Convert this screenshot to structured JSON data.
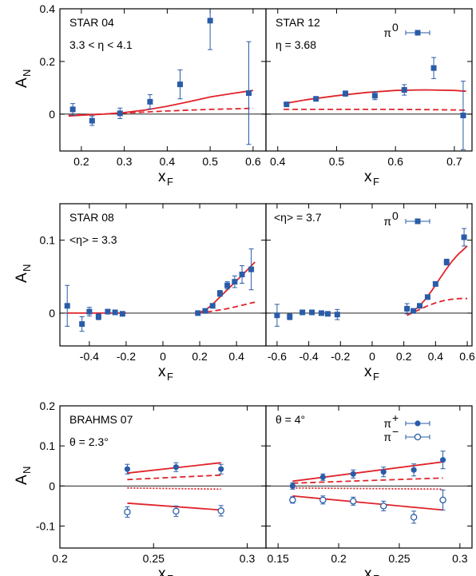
{
  "chart_data": [
    {
      "id": "star04",
      "type": "scatter",
      "title": "STAR 04",
      "annotation": "3.3 < η < 4.1",
      "legend": null,
      "xlim": [
        0.15,
        0.63
      ],
      "ylim": [
        -0.14,
        0.4
      ],
      "xticks": [
        0.2,
        0.3,
        0.4,
        0.5,
        0.6
      ],
      "xtick_labels": [
        "0.2",
        "0.3",
        "0.4",
        "0.5",
        "0.6"
      ],
      "yticks": [
        0,
        0.2,
        0.4
      ],
      "ytick_labels": [
        "0",
        "0.2",
        "0.4"
      ],
      "xlabel": "x",
      "xlabel_sub": "F",
      "ylabel": "A",
      "ylabel_sub": "N",
      "series": [
        {
          "marker": "square-filled",
          "color": "#2a5ca8",
          "x": [
            0.18,
            0.225,
            0.29,
            0.36,
            0.43,
            0.5,
            0.59
          ],
          "y": [
            0.018,
            -0.025,
            0.003,
            0.047,
            0.113,
            0.355,
            0.08
          ],
          "err": [
            0.022,
            0.018,
            0.02,
            0.027,
            0.055,
            0.11,
            0.195
          ]
        }
      ],
      "curves": [
        {
          "style": "solid",
          "color": "#e0242b",
          "x": [
            0.17,
            0.2,
            0.25,
            0.3,
            0.35,
            0.4,
            0.45,
            0.5,
            0.55,
            0.6
          ],
          "y": [
            -0.007,
            -0.004,
            0.0,
            0.006,
            0.016,
            0.03,
            0.047,
            0.065,
            0.078,
            0.09
          ]
        },
        {
          "style": "dashed",
          "color": "#e0242b",
          "x": [
            0.17,
            0.2,
            0.25,
            0.3,
            0.35,
            0.4,
            0.45,
            0.5,
            0.55,
            0.6
          ],
          "y": [
            -0.005,
            -0.003,
            0.0,
            0.004,
            0.008,
            0.012,
            0.015,
            0.018,
            0.02,
            0.022
          ]
        }
      ]
    },
    {
      "id": "star12",
      "type": "scatter",
      "title": "STAR 12",
      "annotation": "η = 3.68",
      "legend": {
        "label": "π",
        "sup": "0",
        "marker": "square-filled"
      },
      "xlim": [
        0.38,
        0.73
      ],
      "ylim": [
        -0.14,
        0.4
      ],
      "xticks": [
        0.4,
        0.5,
        0.6,
        0.7
      ],
      "xtick_labels": [
        "0.4",
        "0.5",
        "0.6",
        "0.7"
      ],
      "yticks": [
        0,
        0.2,
        0.4
      ],
      "ytick_labels": [],
      "xlabel": "x",
      "xlabel_sub": "F",
      "ylabel": "",
      "ylabel_sub": "",
      "series": [
        {
          "marker": "square-filled",
          "color": "#2a5ca8",
          "x": [
            0.415,
            0.465,
            0.515,
            0.565,
            0.615,
            0.665,
            0.715
          ],
          "y": [
            0.037,
            0.058,
            0.078,
            0.07,
            0.092,
            0.175,
            -0.005
          ],
          "err": [
            0.006,
            0.007,
            0.01,
            0.015,
            0.02,
            0.04,
            0.13
          ]
        }
      ],
      "curves": [
        {
          "style": "solid",
          "color": "#e0242b",
          "x": [
            0.41,
            0.45,
            0.5,
            0.55,
            0.6,
            0.65,
            0.7,
            0.72
          ],
          "y": [
            0.04,
            0.055,
            0.07,
            0.082,
            0.09,
            0.092,
            0.09,
            0.087
          ]
        },
        {
          "style": "dashed",
          "color": "#e0242b",
          "x": [
            0.41,
            0.45,
            0.5,
            0.55,
            0.6,
            0.65,
            0.7,
            0.72
          ],
          "y": [
            0.018,
            0.018,
            0.018,
            0.018,
            0.018,
            0.017,
            0.016,
            0.015
          ]
        }
      ]
    },
    {
      "id": "star08-left",
      "type": "scatter",
      "title": "STAR 08",
      "annotation": "<η> = 3.3",
      "legend": null,
      "xlim": [
        -0.56,
        0.56
      ],
      "ylim": [
        -0.045,
        0.15
      ],
      "xticks": [
        -0.4,
        -0.2,
        0,
        0.2,
        0.4
      ],
      "xtick_labels": [
        "-0.4",
        "-0.2",
        "0",
        "0.2",
        "0.4"
      ],
      "yticks": [
        0,
        0.1
      ],
      "ytick_labels": [
        "0",
        "0.1"
      ],
      "xlabel": "x",
      "xlabel_sub": "F",
      "ylabel": "A",
      "ylabel_sub": "N",
      "series": [
        {
          "marker": "square-filled",
          "color": "#2a5ca8",
          "x": [
            -0.52,
            -0.44,
            -0.4,
            -0.35,
            -0.3,
            -0.26,
            -0.22,
            0.19,
            0.23,
            0.27,
            0.31,
            0.35,
            0.39,
            0.43,
            0.48
          ],
          "y": [
            0.01,
            -0.015,
            0.002,
            -0.005,
            0.002,
            0.001,
            -0.001,
            0.0,
            0.003,
            0.01,
            0.027,
            0.038,
            0.043,
            0.053,
            0.06
          ],
          "err": [
            0.028,
            0.01,
            0.006,
            0.004,
            0.003,
            0.003,
            0.002,
            0.002,
            0.002,
            0.002,
            0.004,
            0.005,
            0.008,
            0.012,
            0.028
          ]
        }
      ],
      "curves": [
        {
          "style": "solid",
          "color": "#e0242b",
          "x": [
            -0.52,
            -0.45,
            -0.38,
            -0.3,
            -0.25,
            -0.2
          ],
          "y": [
            0.0,
            0.0,
            0.0,
            0.0,
            0.0,
            0.0
          ]
        },
        {
          "style": "solid",
          "color": "#e0242b",
          "x": [
            0.19,
            0.23,
            0.27,
            0.31,
            0.35,
            0.39,
            0.43,
            0.47,
            0.5
          ],
          "y": [
            0.0,
            0.004,
            0.012,
            0.022,
            0.032,
            0.042,
            0.052,
            0.062,
            0.07
          ]
        },
        {
          "style": "dashed",
          "color": "#e0242b",
          "x": [
            0.19,
            0.25,
            0.3,
            0.35,
            0.4,
            0.45,
            0.5
          ],
          "y": [
            0.0,
            0.002,
            0.004,
            0.006,
            0.009,
            0.012,
            0.015
          ]
        }
      ]
    },
    {
      "id": "star08-right",
      "type": "scatter",
      "title": "",
      "annotation": "<η> = 3.7",
      "legend": {
        "label": "π",
        "sup": "0",
        "marker": "square-filled"
      },
      "xlim": [
        -0.67,
        0.63
      ],
      "ylim": [
        -0.045,
        0.15
      ],
      "xticks": [
        -0.6,
        -0.4,
        -0.2,
        0,
        0.2,
        0.4,
        0.6
      ],
      "xtick_labels": [
        "-0.6",
        "-0.4",
        "-0.2",
        "0",
        "0.2",
        "0.4",
        "0.6"
      ],
      "yticks": [
        0,
        0.1
      ],
      "ytick_labels": [],
      "xlabel": "x",
      "xlabel_sub": "F",
      "ylabel": "",
      "ylabel_sub": "",
      "series": [
        {
          "marker": "square-filled",
          "color": "#2a5ca8",
          "x": [
            -0.6,
            -0.52,
            -0.44,
            -0.38,
            -0.32,
            -0.28,
            -0.22,
            0.22,
            0.26,
            0.3,
            0.35,
            0.4,
            0.47,
            0.58
          ],
          "y": [
            -0.003,
            -0.005,
            0.001,
            0.001,
            0.0,
            -0.001,
            -0.002,
            0.006,
            0.003,
            0.01,
            0.022,
            0.04,
            0.07,
            0.104
          ],
          "err": [
            0.015,
            0.004,
            0.003,
            0.002,
            0.002,
            0.002,
            0.007,
            0.007,
            0.003,
            0.002,
            0.003,
            0.003,
            0.004,
            0.012
          ]
        }
      ],
      "curves": [
        {
          "style": "solid",
          "color": "#e0242b",
          "x": [
            0.22,
            0.26,
            0.3,
            0.34,
            0.38,
            0.42,
            0.46,
            0.5,
            0.54,
            0.58,
            0.6
          ],
          "y": [
            -0.003,
            0.003,
            0.01,
            0.02,
            0.032,
            0.045,
            0.058,
            0.07,
            0.08,
            0.088,
            0.092
          ]
        },
        {
          "style": "dashed",
          "color": "#e0242b",
          "x": [
            0.22,
            0.26,
            0.3,
            0.35,
            0.4,
            0.45,
            0.5,
            0.55,
            0.6
          ],
          "y": [
            -0.003,
            0.001,
            0.005,
            0.01,
            0.014,
            0.017,
            0.019,
            0.02,
            0.02
          ]
        }
      ]
    },
    {
      "id": "brahms-left",
      "type": "scatter",
      "title": "BRAHMS 07",
      "annotation": "θ = 2.3°",
      "legend": null,
      "xlim": [
        0.2,
        0.31
      ],
      "ylim": [
        -0.155,
        0.2
      ],
      "xticks": [
        0.2,
        0.25,
        0.3
      ],
      "xtick_labels": [
        "0.2",
        "0.25",
        "0.3"
      ],
      "yticks": [
        -0.1,
        0,
        0.1,
        0.2
      ],
      "ytick_labels": [
        "-0.1",
        "0",
        "0.1",
        "0.2"
      ],
      "xlabel": "x",
      "xlabel_sub": "F",
      "ylabel": "A",
      "ylabel_sub": "N",
      "series": [
        {
          "name": "π+",
          "marker": "circle-filled",
          "color": "#2a5ca8",
          "x": [
            0.236,
            0.262,
            0.286
          ],
          "y": [
            0.042,
            0.047,
            0.042
          ],
          "err": [
            0.012,
            0.011,
            0.012
          ]
        },
        {
          "name": "π−",
          "marker": "circle-open",
          "color": "#2a5ca8",
          "x": [
            0.236,
            0.262,
            0.286
          ],
          "y": [
            -0.065,
            -0.063,
            -0.062
          ],
          "err": [
            0.013,
            0.013,
            0.013
          ]
        }
      ],
      "curves": [
        {
          "style": "solid",
          "color": "#e0242b",
          "x": [
            0.236,
            0.286
          ],
          "y": [
            0.032,
            0.058
          ]
        },
        {
          "style": "dashed",
          "color": "#e0242b",
          "x": [
            0.236,
            0.286
          ],
          "y": [
            0.016,
            0.027
          ]
        },
        {
          "style": "dotted",
          "color": "#e0242b",
          "x": [
            0.236,
            0.286
          ],
          "y": [
            -0.005,
            -0.008
          ]
        },
        {
          "style": "solid",
          "color": "#e0242b",
          "x": [
            0.236,
            0.286
          ],
          "y": [
            -0.043,
            -0.06
          ]
        }
      ]
    },
    {
      "id": "brahms-right",
      "type": "scatter",
      "title": "",
      "annotation": "θ = 4°",
      "legend": {
        "entries": [
          {
            "label": "π",
            "sup": "+",
            "marker": "circle-filled"
          },
          {
            "label": "π",
            "sup": "−",
            "marker": "circle-open"
          }
        ]
      },
      "xlim": [
        0.14,
        0.31
      ],
      "ylim": [
        -0.155,
        0.2
      ],
      "xticks": [
        0.15,
        0.2,
        0.25,
        0.3
      ],
      "xtick_labels": [
        "0.15",
        "0.2",
        "0.25",
        "0.3"
      ],
      "yticks": [
        -0.1,
        0,
        0.1,
        0.2
      ],
      "ytick_labels": [],
      "xlabel": "x",
      "xlabel_sub": "F",
      "ylabel": "",
      "ylabel_sub": "",
      "series": [
        {
          "name": "π+",
          "marker": "circle-filled",
          "color": "#2a5ca8",
          "x": [
            0.162,
            0.187,
            0.212,
            0.237,
            0.262,
            0.286
          ],
          "y": [
            0.0,
            0.022,
            0.03,
            0.035,
            0.04,
            0.065
          ],
          "err": [
            0.008,
            0.008,
            0.01,
            0.012,
            0.015,
            0.022
          ]
        },
        {
          "name": "π−",
          "marker": "circle-open",
          "color": "#2a5ca8",
          "x": [
            0.162,
            0.187,
            0.212,
            0.237,
            0.262,
            0.286
          ],
          "y": [
            -0.035,
            -0.035,
            -0.038,
            -0.05,
            -0.078,
            -0.035
          ],
          "err": [
            0.008,
            0.01,
            0.01,
            0.012,
            0.015,
            0.025
          ]
        }
      ],
      "curves": [
        {
          "style": "solid",
          "color": "#e0242b",
          "x": [
            0.162,
            0.286
          ],
          "y": [
            0.012,
            0.06
          ]
        },
        {
          "style": "dashed",
          "color": "#e0242b",
          "x": [
            0.162,
            0.286
          ],
          "y": [
            0.007,
            0.02
          ]
        },
        {
          "style": "dotted",
          "color": "#e0242b",
          "x": [
            0.162,
            0.286
          ],
          "y": [
            -0.005,
            -0.008
          ]
        },
        {
          "style": "solid",
          "color": "#e0242b",
          "x": [
            0.162,
            0.286
          ],
          "y": [
            -0.025,
            -0.06
          ]
        }
      ]
    }
  ]
}
